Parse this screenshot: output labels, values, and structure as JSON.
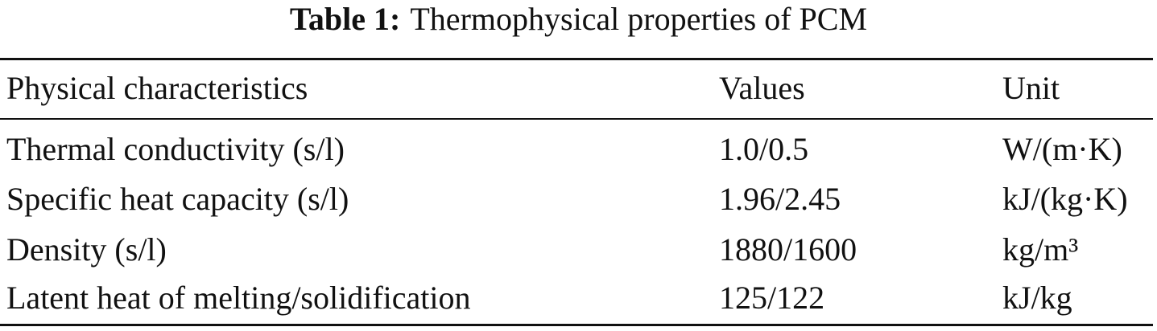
{
  "title": {
    "label": "Table 1:",
    "text": "Thermophysical properties of PCM"
  },
  "table": {
    "header": [
      "Physical characteristics",
      "Values",
      "Unit"
    ],
    "rows": [
      [
        "Thermal conductivity (s/l)",
        "1.0/0.5",
        "W/(m·K)"
      ],
      [
        "Specific heat capacity (s/l)",
        "1.96/2.45",
        "kJ/(kg·K)"
      ],
      [
        "Density (s/l)",
        "1880/1600",
        "kg/m³"
      ],
      [
        "Latent heat of melting/solidification",
        "125/122",
        "kJ/kg"
      ]
    ]
  }
}
